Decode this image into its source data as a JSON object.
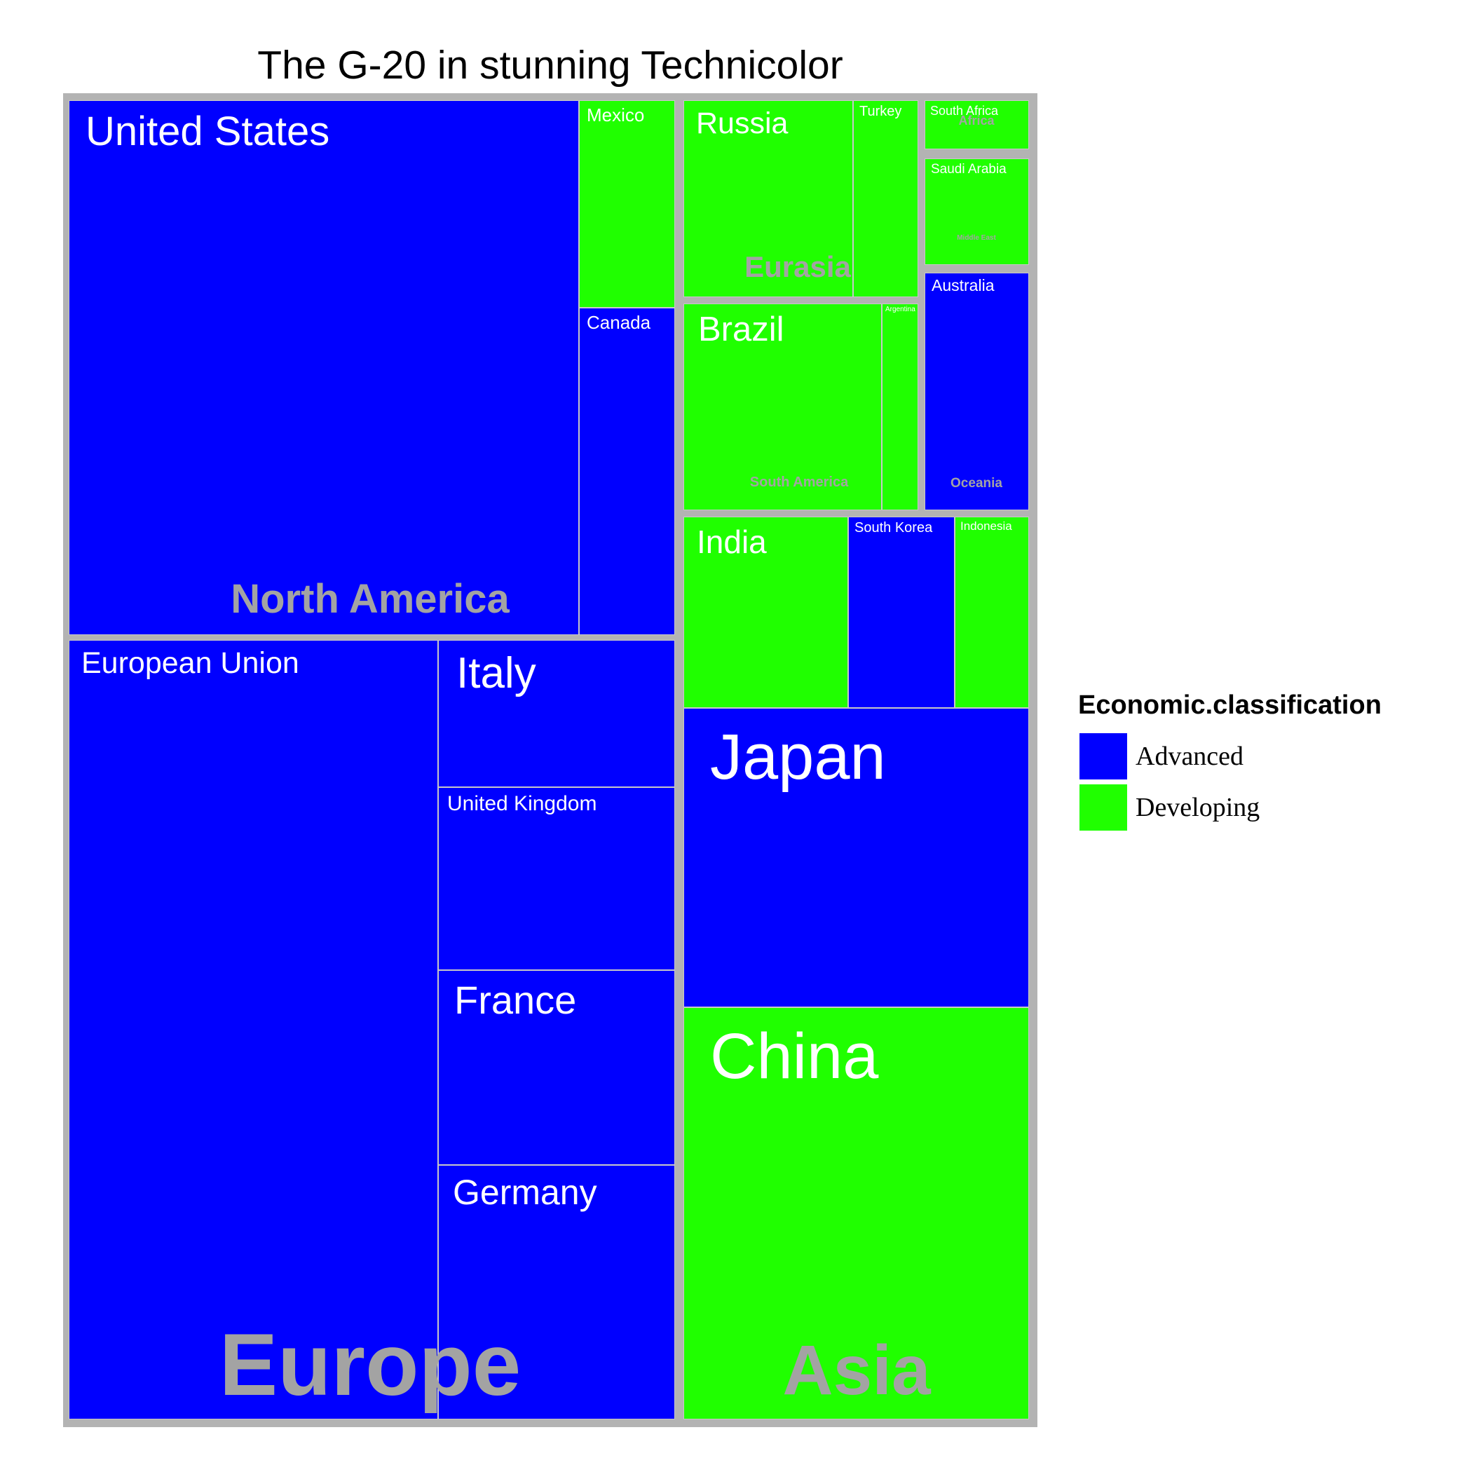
{
  "chart_data": {
    "type": "treemap",
    "title": "The G-20 in stunning Technicolor",
    "legend": {
      "title": "Economic.classification",
      "placement": "right",
      "entries": [
        {
          "label": "Advanced",
          "color": "#0000ff"
        },
        {
          "label": "Developing",
          "color": "#20ff00"
        }
      ]
    },
    "regions": [
      {
        "name": "Europe",
        "countries": [
          {
            "name": "European Union",
            "classification": "Advanced"
          },
          {
            "name": "Germany",
            "classification": "Advanced"
          },
          {
            "name": "France",
            "classification": "Advanced"
          },
          {
            "name": "United Kingdom",
            "classification": "Advanced"
          },
          {
            "name": "Italy",
            "classification": "Advanced"
          }
        ]
      },
      {
        "name": "North America",
        "countries": [
          {
            "name": "United States",
            "classification": "Advanced"
          },
          {
            "name": "Canada",
            "classification": "Advanced"
          },
          {
            "name": "Mexico",
            "classification": "Developing"
          }
        ]
      },
      {
        "name": "Asia",
        "countries": [
          {
            "name": "China",
            "classification": "Developing"
          },
          {
            "name": "Japan",
            "classification": "Advanced"
          },
          {
            "name": "India",
            "classification": "Developing"
          },
          {
            "name": "South Korea",
            "classification": "Advanced"
          },
          {
            "name": "Indonesia",
            "classification": "Developing"
          }
        ]
      },
      {
        "name": "Eurasia",
        "countries": [
          {
            "name": "Russia",
            "classification": "Developing"
          },
          {
            "name": "Turkey",
            "classification": "Developing"
          }
        ]
      },
      {
        "name": "South America",
        "countries": [
          {
            "name": "Brazil",
            "classification": "Developing"
          },
          {
            "name": "Argentina",
            "classification": "Developing"
          }
        ]
      },
      {
        "name": "Oceania",
        "countries": [
          {
            "name": "Australia",
            "classification": "Advanced"
          }
        ]
      },
      {
        "name": "Middle East",
        "countries": [
          {
            "name": "Saudi Arabia",
            "classification": "Developing"
          }
        ]
      },
      {
        "name": "Africa",
        "countries": [
          {
            "name": "South Africa",
            "classification": "Developing"
          }
        ]
      }
    ]
  }
}
